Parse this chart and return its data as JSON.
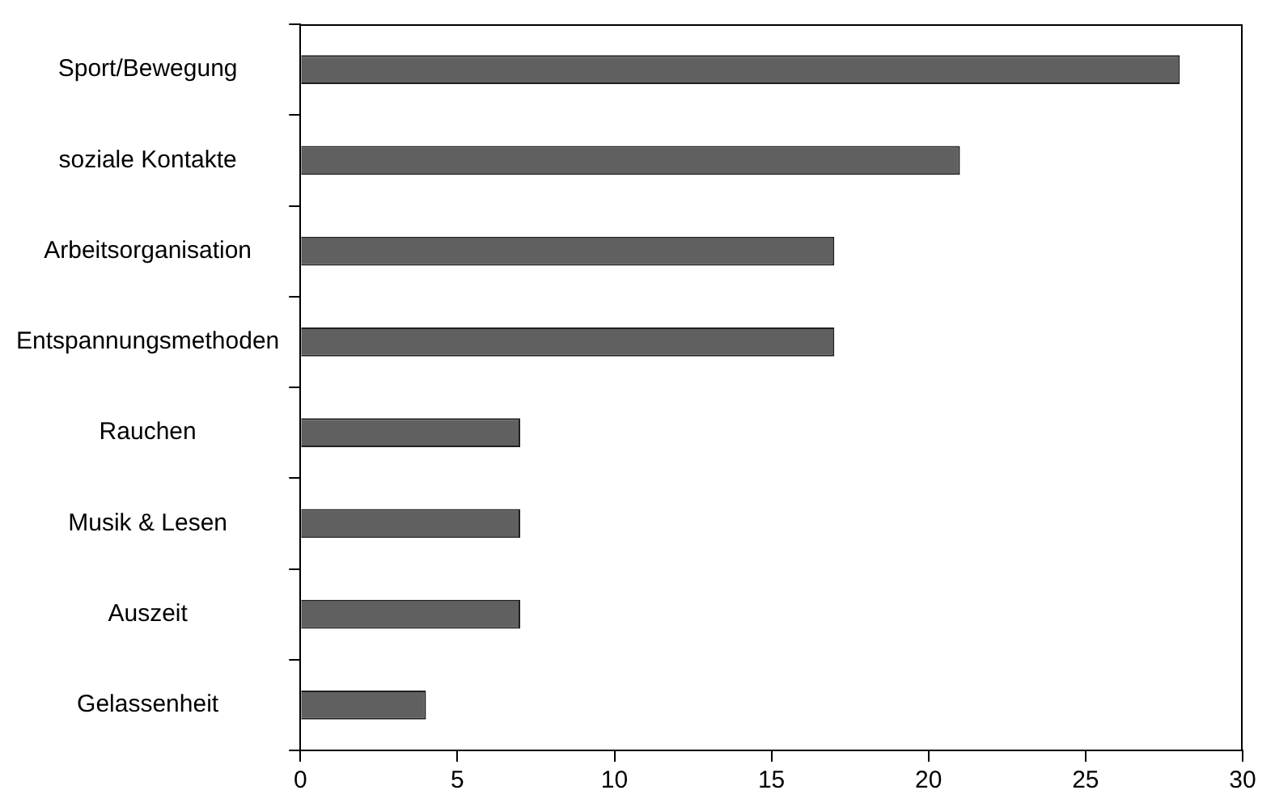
{
  "chart_data": {
    "type": "bar",
    "orientation": "horizontal",
    "categories": [
      "Sport/Bewegung",
      "soziale Kontakte",
      "Arbeitsorganisation",
      "Entspannungsmethoden",
      "Rauchen",
      "Musik & Lesen",
      "Auszeit",
      "Gelassenheit"
    ],
    "values": [
      28,
      21,
      17,
      17,
      7,
      7,
      7,
      4
    ],
    "color": "#606060",
    "xlim": [
      0,
      30
    ],
    "xticks": [
      0,
      5,
      10,
      15,
      20,
      25,
      30
    ],
    "grid": false,
    "legend": false
  }
}
